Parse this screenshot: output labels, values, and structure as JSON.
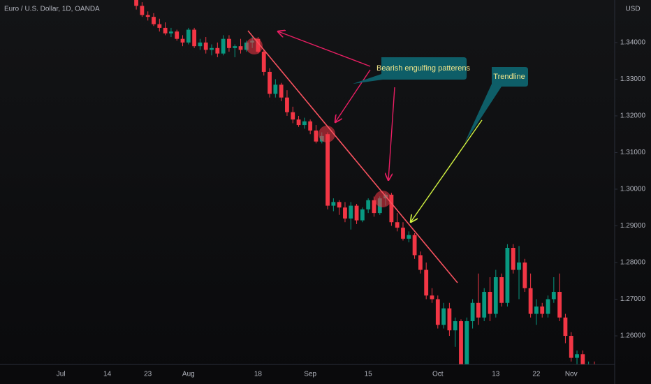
{
  "chart_data": {
    "type": "candlestick",
    "title": "Euro / U.S. Dollar, 1D, OANDA",
    "currency": "USD",
    "categories": [
      null,
      null,
      null,
      null,
      null,
      null,
      null,
      null,
      null,
      null,
      "Jul",
      null,
      null,
      null,
      null,
      null,
      null,
      null,
      "14",
      null,
      null,
      null,
      null,
      null,
      null,
      "23",
      null,
      null,
      null,
      null,
      null,
      null,
      "Aug",
      null,
      null,
      null,
      null,
      null,
      null,
      null,
      null,
      null,
      null,
      null,
      "18",
      null,
      null,
      null,
      null,
      null,
      null,
      null,
      null,
      "Sep",
      null,
      null,
      null,
      null,
      null,
      null,
      null,
      null,
      null,
      "15",
      null,
      null,
      null,
      null,
      null,
      null,
      null,
      null,
      null,
      null,
      null,
      "Oct",
      null,
      null,
      null,
      null,
      null,
      null,
      null,
      null,
      null,
      "13",
      null,
      null,
      null,
      null,
      null,
      null,
      "22",
      null,
      null,
      null,
      null,
      null,
      "Nov",
      null,
      null,
      null,
      null,
      null,
      null,
      null
    ],
    "ohlc": [
      null,
      null,
      null,
      null,
      null,
      null,
      null,
      null,
      null,
      null,
      null,
      null,
      null,
      null,
      null,
      null,
      null,
      null,
      null,
      null,
      null,
      null,
      null,
      [
        1.352,
        1.353,
        1.349,
        1.35
      ],
      [
        1.35,
        1.351,
        1.347,
        1.3475
      ],
      [
        1.3475,
        1.3485,
        1.346,
        1.347
      ],
      [
        1.347,
        1.348,
        1.3445,
        1.345
      ],
      [
        1.345,
        1.3465,
        1.343,
        1.344
      ],
      [
        1.344,
        1.3455,
        1.342,
        1.3425
      ],
      [
        1.3425,
        1.344,
        1.3415,
        1.343
      ],
      [
        1.343,
        1.3435,
        1.3405,
        1.341
      ],
      [
        1.341,
        1.342,
        1.339,
        1.34
      ],
      [
        1.34,
        1.344,
        1.3395,
        1.3435
      ],
      [
        1.3435,
        1.344,
        1.3385,
        1.339
      ],
      [
        1.339,
        1.341,
        1.338,
        1.34
      ],
      [
        1.34,
        1.3415,
        1.337,
        1.338
      ],
      [
        1.338,
        1.3395,
        1.3365,
        1.3385
      ],
      [
        1.3385,
        1.34,
        1.336,
        1.337
      ],
      [
        1.337,
        1.342,
        1.3365,
        1.341
      ],
      [
        1.341,
        1.342,
        1.3375,
        1.3385
      ],
      [
        1.3385,
        1.3395,
        1.336,
        1.339
      ],
      [
        1.339,
        1.341,
        1.337,
        1.338
      ],
      [
        1.338,
        1.3405,
        1.3375,
        1.34
      ],
      [
        1.34,
        1.3415,
        1.3385,
        1.3405
      ],
      [
        1.341,
        1.3415,
        1.337,
        1.3375
      ],
      [
        1.3375,
        1.338,
        1.331,
        1.332
      ],
      [
        1.332,
        1.333,
        1.325,
        1.326
      ],
      [
        1.326,
        1.33,
        1.325,
        1.3285
      ],
      [
        1.3285,
        1.329,
        1.324,
        1.325
      ],
      [
        1.325,
        1.327,
        1.32,
        1.321
      ],
      [
        1.321,
        1.3225,
        1.318,
        1.319
      ],
      [
        1.319,
        1.32,
        1.317,
        1.3175
      ],
      [
        1.3175,
        1.3195,
        1.3165,
        1.3185
      ],
      [
        1.3185,
        1.319,
        1.315,
        1.316
      ],
      [
        1.316,
        1.3175,
        1.3125,
        1.313
      ],
      [
        1.313,
        1.3155,
        1.3125,
        1.3145
      ],
      [
        1.315,
        1.3155,
        1.2945,
        1.2955
      ],
      [
        1.2955,
        1.2975,
        1.294,
        1.2965
      ],
      [
        1.2965,
        1.297,
        1.293,
        1.295
      ],
      [
        1.295,
        1.2965,
        1.291,
        1.292
      ],
      [
        1.292,
        1.2965,
        1.289,
        1.2955
      ],
      [
        1.2955,
        1.296,
        1.2905,
        1.2915
      ],
      [
        1.2915,
        1.295,
        1.291,
        1.2945
      ],
      [
        1.2945,
        1.2975,
        1.2935,
        1.297
      ],
      [
        1.297,
        1.298,
        1.2925,
        1.2935
      ],
      [
        1.2935,
        1.298,
        1.293,
        1.2975
      ],
      [
        1.2975,
        1.299,
        1.2955,
        1.2985
      ],
      [
        1.2985,
        1.299,
        1.29,
        1.291
      ],
      [
        1.291,
        1.2935,
        1.2885,
        1.2895
      ],
      [
        1.2895,
        1.291,
        1.286,
        1.2865
      ],
      [
        1.2865,
        1.2885,
        1.2855,
        1.2875
      ],
      [
        1.2875,
        1.288,
        1.281,
        1.282
      ],
      [
        1.282,
        1.283,
        1.277,
        1.278
      ],
      [
        1.278,
        1.28,
        1.27,
        1.271
      ],
      [
        1.271,
        1.273,
        1.269,
        1.27
      ],
      [
        1.27,
        1.271,
        1.262,
        1.263
      ],
      [
        1.263,
        1.269,
        1.262,
        1.2675
      ],
      [
        1.2675,
        1.269,
        1.26,
        1.2615
      ],
      [
        1.2615,
        1.265,
        1.257,
        1.264
      ],
      [
        1.264,
        1.2645,
        1.25,
        1.251
      ],
      [
        1.251,
        1.265,
        1.25,
        1.264
      ],
      [
        1.264,
        1.27,
        1.262,
        1.269
      ],
      [
        1.269,
        1.277,
        1.263,
        1.265
      ],
      [
        1.265,
        1.273,
        1.264,
        1.272
      ],
      [
        1.272,
        1.276,
        1.264,
        1.266
      ],
      [
        1.266,
        1.278,
        1.265,
        1.276
      ],
      [
        1.276,
        1.277,
        1.268,
        1.269
      ],
      [
        1.269,
        1.285,
        1.268,
        1.284
      ],
      [
        1.284,
        1.285,
        1.277,
        1.278
      ],
      [
        1.278,
        1.2845,
        1.27,
        1.28
      ],
      [
        1.28,
        1.281,
        1.272,
        1.273
      ],
      [
        1.273,
        1.277,
        1.265,
        1.266
      ],
      [
        1.266,
        1.27,
        1.263,
        1.268
      ],
      [
        1.268,
        1.269,
        1.265,
        1.266
      ],
      [
        1.266,
        1.271,
        1.265,
        1.27
      ],
      [
        1.27,
        1.276,
        1.269,
        1.272
      ],
      [
        1.272,
        1.277,
        1.264,
        1.265
      ],
      [
        1.265,
        1.266,
        1.258,
        1.26
      ],
      [
        1.26,
        1.261,
        1.253,
        1.254
      ],
      [
        1.254,
        1.256,
        1.252,
        1.255
      ],
      [
        1.255,
        1.256,
        1.2505,
        1.2515
      ],
      [
        1.2515,
        1.253,
        1.2505,
        1.252
      ],
      [
        1.252,
        1.253,
        1.2505,
        1.251
      ],
      null,
      null,
      null
    ],
    "up_color": "#089981",
    "down_color": "#f23645",
    "ylim": [
      1.2522,
      1.3516
    ],
    "yticks": [
      {
        "value": 1.26,
        "label": "1.26000"
      },
      {
        "value": 1.27,
        "label": "1.27000"
      },
      {
        "value": 1.28,
        "label": "1.28000"
      },
      {
        "value": 1.29,
        "label": "1.29000"
      },
      {
        "value": 1.3,
        "label": "1.30000"
      },
      {
        "value": 1.31,
        "label": "1.31000"
      },
      {
        "value": 1.32,
        "label": "1.32000"
      },
      {
        "value": 1.33,
        "label": "1.33000"
      },
      {
        "value": 1.34,
        "label": "1.34000"
      }
    ],
    "annotations": [
      "Bearish engulfing patterens",
      "Trendline"
    ]
  }
}
